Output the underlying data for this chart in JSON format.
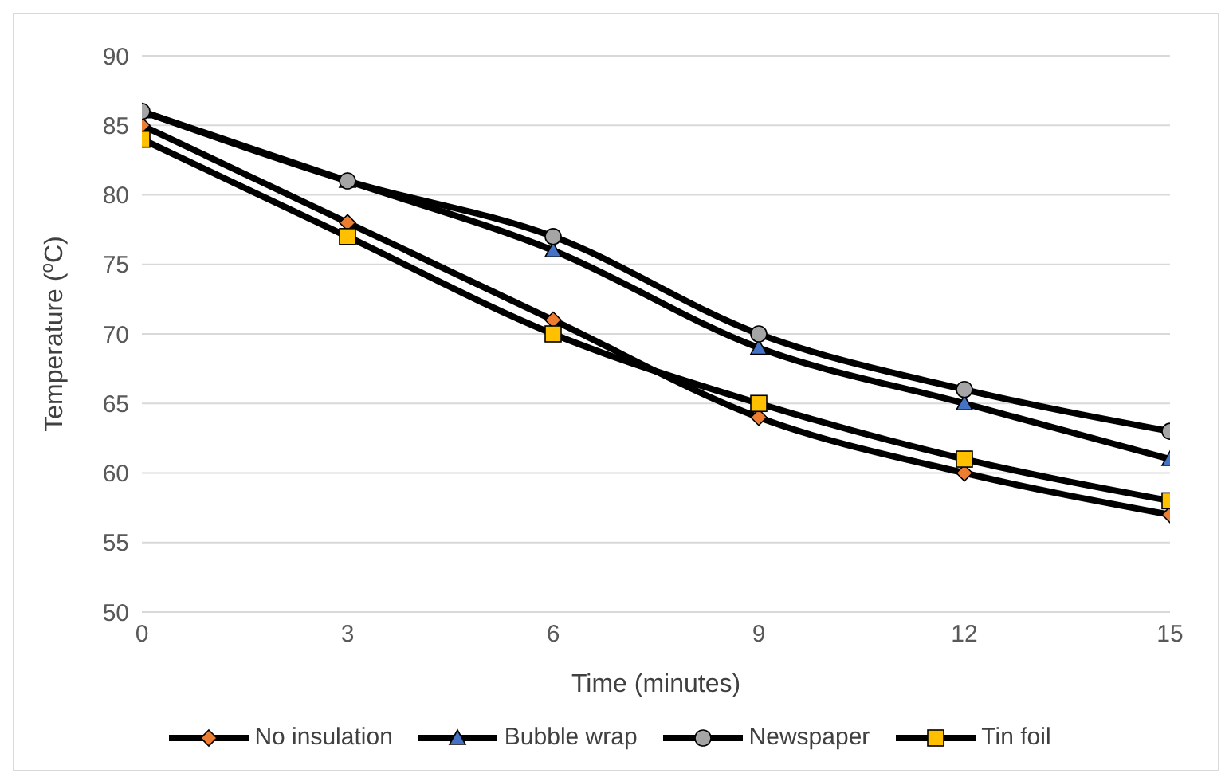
{
  "chart_data": {
    "type": "line",
    "xlabel": "Time (minutes)",
    "ylabel": "Temperature ($^{o}$C)",
    "x": [
      0,
      3,
      6,
      9,
      12,
      15
    ],
    "xlim": [
      0,
      15
    ],
    "xticks": [
      0,
      3,
      6,
      9,
      12,
      15
    ],
    "ylim": [
      50,
      90
    ],
    "yticks": [
      50,
      55,
      60,
      65,
      70,
      75,
      80,
      85,
      90
    ],
    "grid": "y",
    "legend": "bottom",
    "series": [
      {
        "name": "No insulation",
        "color": "#ed7d31",
        "marker": "diamond",
        "values": [
          85,
          78,
          71,
          64,
          60,
          57
        ]
      },
      {
        "name": "Bubble wrap",
        "color": "#4472c4",
        "marker": "triangle",
        "values": [
          86,
          81,
          76,
          69,
          65,
          61
        ]
      },
      {
        "name": "Newspaper",
        "color": "#a5a5a5",
        "marker": "circle",
        "values": [
          86,
          81,
          77,
          70,
          66,
          63
        ]
      },
      {
        "name": "Tin foil",
        "color": "#ffc000",
        "marker": "square",
        "values": [
          84,
          77,
          70,
          65,
          61,
          58
        ]
      }
    ]
  }
}
